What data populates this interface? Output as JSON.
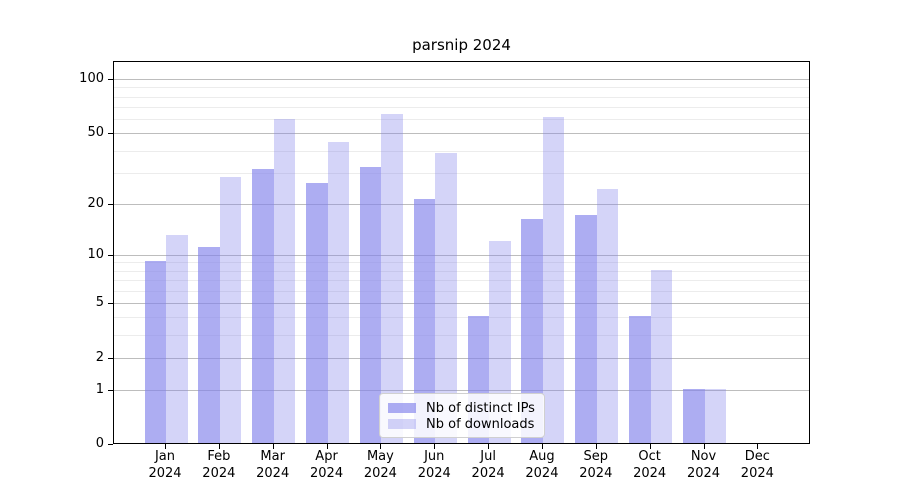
{
  "chart_data": {
    "type": "bar",
    "title": "parsnip 2024",
    "categories": [
      "Jan",
      "Feb",
      "Mar",
      "Apr",
      "May",
      "Jun",
      "Jul",
      "Aug",
      "Sep",
      "Oct",
      "Nov",
      "Dec"
    ],
    "category_year": "2024",
    "series": [
      {
        "name": "Nb of distinct IPs",
        "color": "rgba(130,130,235,0.66)",
        "values": [
          9,
          11,
          31,
          26,
          32,
          21,
          4,
          16,
          17,
          4,
          1,
          0
        ]
      },
      {
        "name": "Nb of downloads",
        "color": "rgba(130,130,235,0.34)",
        "values": [
          13,
          28,
          59,
          44,
          63,
          38,
          12,
          61,
          24,
          8,
          1,
          0
        ]
      }
    ],
    "y_axis": {
      "scale": "log1p",
      "tick_labels": [
        "0",
        "1",
        "2",
        "5",
        "10",
        "20",
        "50",
        "100"
      ],
      "tick_values": [
        0,
        1,
        2,
        5,
        10,
        20,
        50,
        100
      ],
      "minor_tick_values": [
        3,
        4,
        6,
        7,
        8,
        9,
        30,
        40,
        60,
        70,
        80,
        90
      ],
      "range_max": 120
    },
    "legend_position": "lower-center",
    "grid": "on"
  },
  "colors": {
    "background": "#ffffff",
    "spine": "#000000",
    "major_grid": "#bdbdbd",
    "minor_grid": "#ececec",
    "text": "#000000",
    "legend_border": "#d0d0d0"
  }
}
